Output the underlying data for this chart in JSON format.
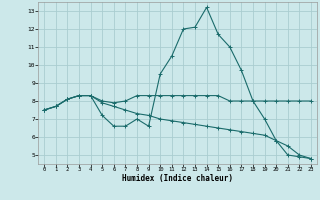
{
  "xlabel": "Humidex (Indice chaleur)",
  "bg_color": "#cce8ea",
  "grid_color": "#aacdd0",
  "line_color": "#1a6b6b",
  "xlim": [
    -0.5,
    23.5
  ],
  "ylim": [
    4.5,
    13.5
  ],
  "xticks": [
    0,
    1,
    2,
    3,
    4,
    5,
    6,
    7,
    8,
    9,
    10,
    11,
    12,
    13,
    14,
    15,
    16,
    17,
    18,
    19,
    20,
    21,
    22,
    23
  ],
  "yticks": [
    5,
    6,
    7,
    8,
    9,
    10,
    11,
    12,
    13
  ],
  "line1_x": [
    0,
    1,
    2,
    3,
    4,
    5,
    6,
    7,
    8,
    9,
    10,
    11,
    12,
    13,
    14,
    15,
    16,
    17,
    18,
    19,
    20,
    21,
    22,
    23
  ],
  "line1_y": [
    7.5,
    7.7,
    8.1,
    8.3,
    8.3,
    8.0,
    7.9,
    8.0,
    8.3,
    8.3,
    8.3,
    8.3,
    8.3,
    8.3,
    8.3,
    8.3,
    8.0,
    8.0,
    8.0,
    8.0,
    8.0,
    8.0,
    8.0,
    8.0
  ],
  "line2_x": [
    0,
    1,
    2,
    3,
    4,
    5,
    6,
    7,
    8,
    9,
    10,
    11,
    12,
    13,
    14,
    15,
    16,
    17,
    18,
    19,
    20,
    21,
    22,
    23
  ],
  "line2_y": [
    7.5,
    7.7,
    8.1,
    8.3,
    8.3,
    7.2,
    6.6,
    6.6,
    7.0,
    6.6,
    9.5,
    10.5,
    12.0,
    12.1,
    13.2,
    11.7,
    11.0,
    9.7,
    8.0,
    7.0,
    5.8,
    5.0,
    4.9,
    4.8
  ],
  "line3_x": [
    0,
    1,
    2,
    3,
    4,
    5,
    6,
    7,
    8,
    9,
    10,
    11,
    12,
    13,
    14,
    15,
    16,
    17,
    18,
    19,
    20,
    21,
    22,
    23
  ],
  "line3_y": [
    7.5,
    7.7,
    8.1,
    8.3,
    8.3,
    7.9,
    7.7,
    7.5,
    7.3,
    7.2,
    7.0,
    6.9,
    6.8,
    6.7,
    6.6,
    6.5,
    6.4,
    6.3,
    6.2,
    6.1,
    5.8,
    5.5,
    5.0,
    4.8
  ]
}
